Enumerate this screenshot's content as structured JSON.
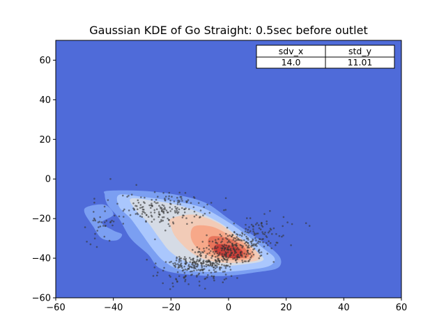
{
  "chart_data": {
    "type": "heatmap",
    "subtype": "gaussian-kde-contour-with-scatter",
    "title": "Gaussian KDE of Go Straight: 0.5sec before outlet",
    "xlabel": "",
    "ylabel": "",
    "xlim": [
      -60,
      60
    ],
    "ylim": [
      -60,
      70
    ],
    "xticks": [
      -60,
      -40,
      -20,
      0,
      20,
      40,
      60
    ],
    "yticks": [
      -60,
      -40,
      -20,
      0,
      20,
      40,
      60
    ],
    "xtick_labels": [
      "−60",
      "−40",
      "−20",
      "0",
      "20",
      "40",
      "60"
    ],
    "ytick_labels": [
      "−60",
      "−40",
      "−20",
      "0",
      "20",
      "40",
      "60"
    ],
    "grid": false,
    "colormap": "coolwarm",
    "background_color": "#4f6bd9",
    "point_color": "#333333",
    "table": {
      "headers": [
        "sdv_x",
        "std_y"
      ],
      "values": [
        "14.0",
        "11.01"
      ]
    },
    "density_peak": {
      "x": 0,
      "y": -37
    },
    "kde_levels": [
      {
        "level": 1,
        "color": "#7b9ff2",
        "polygons": [
          [
            [
              -42,
              -6
            ],
            [
              -30,
              -6
            ],
            [
              -18,
              -8
            ],
            [
              -8,
              -12
            ],
            [
              0,
              -20
            ],
            [
              8,
              -28
            ],
            [
              14,
              -34
            ],
            [
              18,
              -40
            ],
            [
              17,
              -45
            ],
            [
              10,
              -47
            ],
            [
              -2,
              -49
            ],
            [
              -16,
              -48
            ],
            [
              -24,
              -45
            ],
            [
              -28,
              -38
            ],
            [
              -34,
              -30
            ],
            [
              -38,
              -20
            ],
            [
              -42,
              -13
            ],
            [
              -43,
              -8
            ]
          ],
          [
            [
              -49,
              -14
            ],
            [
              -43,
              -13
            ],
            [
              -40,
              -18
            ],
            [
              -44,
              -22
            ],
            [
              -40,
              -26
            ],
            [
              -37,
              -28
            ],
            [
              -39,
              -31
            ],
            [
              -44,
              -30
            ],
            [
              -47,
              -24
            ],
            [
              -50,
              -17
            ]
          ]
        ]
      },
      {
        "level": 2,
        "color": "#aac7fd",
        "polygons": [
          [
            [
              -38,
              -8
            ],
            [
              -30,
              -9
            ],
            [
              -20,
              -11
            ],
            [
              -10,
              -14
            ],
            [
              -2,
              -20
            ],
            [
              6,
              -28
            ],
            [
              12,
              -35
            ],
            [
              16,
              -40
            ],
            [
              14,
              -44
            ],
            [
              6,
              -46
            ],
            [
              -4,
              -47
            ],
            [
              -16,
              -46
            ],
            [
              -22,
              -42
            ],
            [
              -26,
              -36
            ],
            [
              -30,
              -28
            ],
            [
              -34,
              -20
            ],
            [
              -38,
              -14
            ]
          ]
        ]
      },
      {
        "level": 3,
        "color": "#d5dbe5",
        "polygons": [
          [
            [
              -34,
              -10
            ],
            [
              -26,
              -11
            ],
            [
              -18,
              -13
            ],
            [
              -10,
              -17
            ],
            [
              -2,
              -23
            ],
            [
              4,
              -30
            ],
            [
              10,
              -37
            ],
            [
              12,
              -41
            ],
            [
              6,
              -43
            ],
            [
              -4,
              -44
            ],
            [
              -14,
              -42
            ],
            [
              -20,
              -37
            ],
            [
              -24,
              -30
            ],
            [
              -28,
              -22
            ],
            [
              -32,
              -16
            ]
          ]
        ]
      },
      {
        "level": 4,
        "color": "#f2cbb7",
        "polygons": [
          [
            [
              -20,
              -20
            ],
            [
              -12,
              -18
            ],
            [
              -4,
              -22
            ],
            [
              2,
              -28
            ],
            [
              8,
              -34
            ],
            [
              11,
              -40
            ],
            [
              6,
              -42
            ],
            [
              -4,
              -42
            ],
            [
              -12,
              -38
            ],
            [
              -18,
              -30
            ],
            [
              -20,
              -24
            ]
          ]
        ]
      },
      {
        "level": 5,
        "color": "#f7a889",
        "polygons": [
          [
            [
              -12,
              -24
            ],
            [
              -6,
              -24
            ],
            [
              0,
              -28
            ],
            [
              6,
              -33
            ],
            [
              9,
              -39
            ],
            [
              4,
              -41
            ],
            [
              -4,
              -40
            ],
            [
              -10,
              -36
            ],
            [
              -13,
              -30
            ]
          ]
        ]
      },
      {
        "level": 6,
        "color": "#e7745b",
        "polygons": [
          [
            [
              -6,
              -29
            ],
            [
              0,
              -30
            ],
            [
              5,
              -34
            ],
            [
              7,
              -39
            ],
            [
              2,
              -40
            ],
            [
              -4,
              -38
            ],
            [
              -7,
              -33
            ]
          ]
        ]
      },
      {
        "level": 7,
        "color": "#cc403a",
        "polygons": [
          [
            [
              -4,
              -33
            ],
            [
              2,
              -34
            ],
            [
              5,
              -37
            ],
            [
              3,
              -40
            ],
            [
              -2,
              -39
            ],
            [
              -5,
              -36
            ]
          ]
        ]
      }
    ]
  }
}
